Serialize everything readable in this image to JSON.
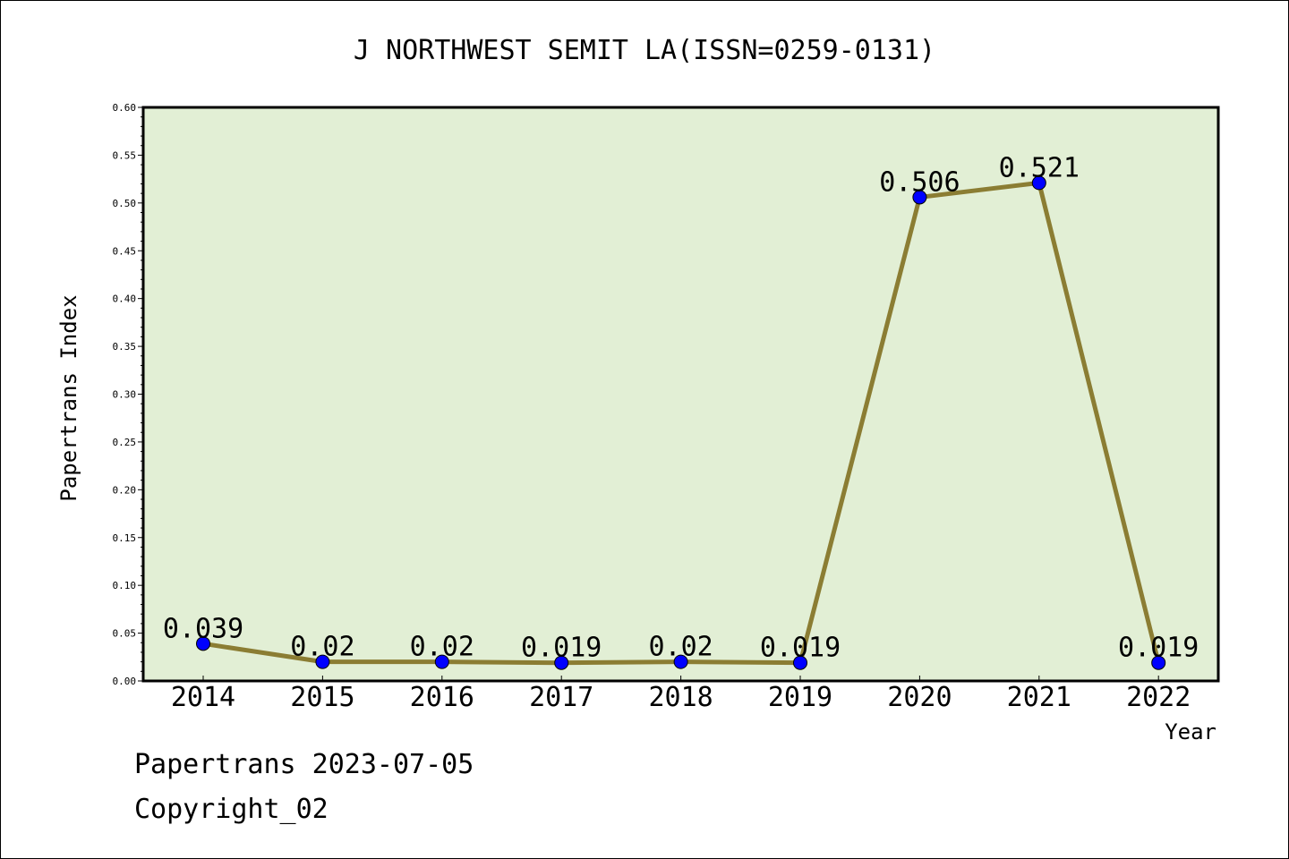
{
  "chart_data": {
    "type": "line",
    "title": "J NORTHWEST SEMIT LA(ISSN=0259-0131)",
    "xlabel": "Year",
    "ylabel": "Papertrans Index",
    "categories": [
      "2014",
      "2015",
      "2016",
      "2017",
      "2018",
      "2019",
      "2020",
      "2021",
      "2022"
    ],
    "series": [
      {
        "values": [
          0.039,
          0.02,
          0.02,
          0.019,
          0.02,
          0.019,
          0.506,
          0.521,
          0.019
        ],
        "labels": [
          "0.039",
          "0.02",
          "0.02",
          "0.019",
          "0.02",
          "0.019",
          "0.506",
          "0.521",
          "0.019"
        ]
      }
    ],
    "ylim": [
      0,
      0.6
    ],
    "yticks": [
      "0.00",
      "0.05",
      "0.10",
      "0.15",
      "0.20",
      "0.25",
      "0.30",
      "0.35",
      "0.40",
      "0.45",
      "0.50",
      "0.55",
      "0.60"
    ],
    "grid": false,
    "colors": {
      "plot_background": "#e2efd5",
      "line": "#8b7d33",
      "marker": "#0000ff"
    }
  },
  "footer": {
    "line1": "Papertrans 2023-07-05",
    "line2": "Copyright_02"
  }
}
